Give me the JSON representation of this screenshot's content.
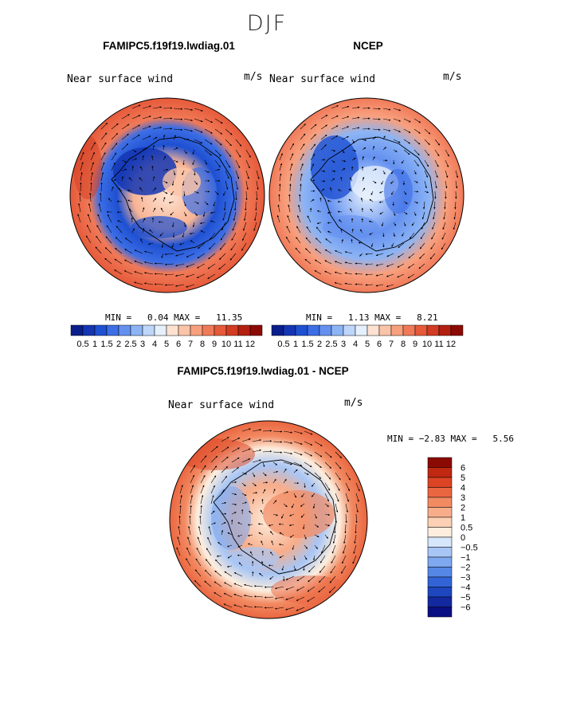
{
  "season": "DJF",
  "colors": {
    "abs_scale": [
      "#0a1e8c",
      "#1436b4",
      "#1e50d2",
      "#3c6ee6",
      "#6491f0",
      "#8cb4f5",
      "#bed6fa",
      "#e6f0fc",
      "#fde2d2",
      "#fbc4a8",
      "#f8a07e",
      "#f07a58",
      "#e65a3a",
      "#d23c22",
      "#b42010",
      "#8c0a04"
    ],
    "diff_scale": [
      "#0a0f82",
      "#1428a0",
      "#1e46be",
      "#3264d7",
      "#5587e6",
      "#7ea8ef",
      "#a8c6f5",
      "#d6e6fb",
      "#fdeede",
      "#fbd0b4",
      "#f8ad8a",
      "#f28a62",
      "#ea6640",
      "#dc4424",
      "#c02812",
      "#8c0a04"
    ]
  },
  "panels": [
    {
      "title": "FAMIPC5.f19f19.lwdiag.01",
      "variable": "Near surface wind",
      "units": "m/s",
      "min_label": "MIN =",
      "min": "0.04",
      "max_label": "MAX =",
      "max": "11.35",
      "colorbar_labels": [
        "0.5",
        "1",
        "1.5",
        "2",
        "2.5",
        "3",
        "4",
        "5",
        "6",
        "7",
        "8",
        "9",
        "10",
        "11",
        "12"
      ]
    },
    {
      "title": "NCEP",
      "variable": "Near surface wind",
      "units": "m/s",
      "min_label": "MIN =",
      "min": "1.13",
      "max_label": "MAX =",
      "max": "8.21",
      "colorbar_labels": [
        "0.5",
        "1",
        "1.5",
        "2",
        "2.5",
        "3",
        "4",
        "5",
        "6",
        "7",
        "8",
        "9",
        "10",
        "11",
        "12"
      ]
    },
    {
      "title": "FAMIPC5.f19f19.lwdiag.01 - NCEP",
      "variable": "Near surface wind",
      "units": "m/s",
      "min_label": "MIN =",
      "min": "−2.83",
      "max_label": "MAX =",
      "max": "5.56",
      "colorbar_labels": [
        "6",
        "5",
        "4",
        "3",
        "2",
        "1",
        "0.5",
        "0",
        "−0.5",
        "−1",
        "−2",
        "−3",
        "−4",
        "−5",
        "−6"
      ]
    }
  ]
}
